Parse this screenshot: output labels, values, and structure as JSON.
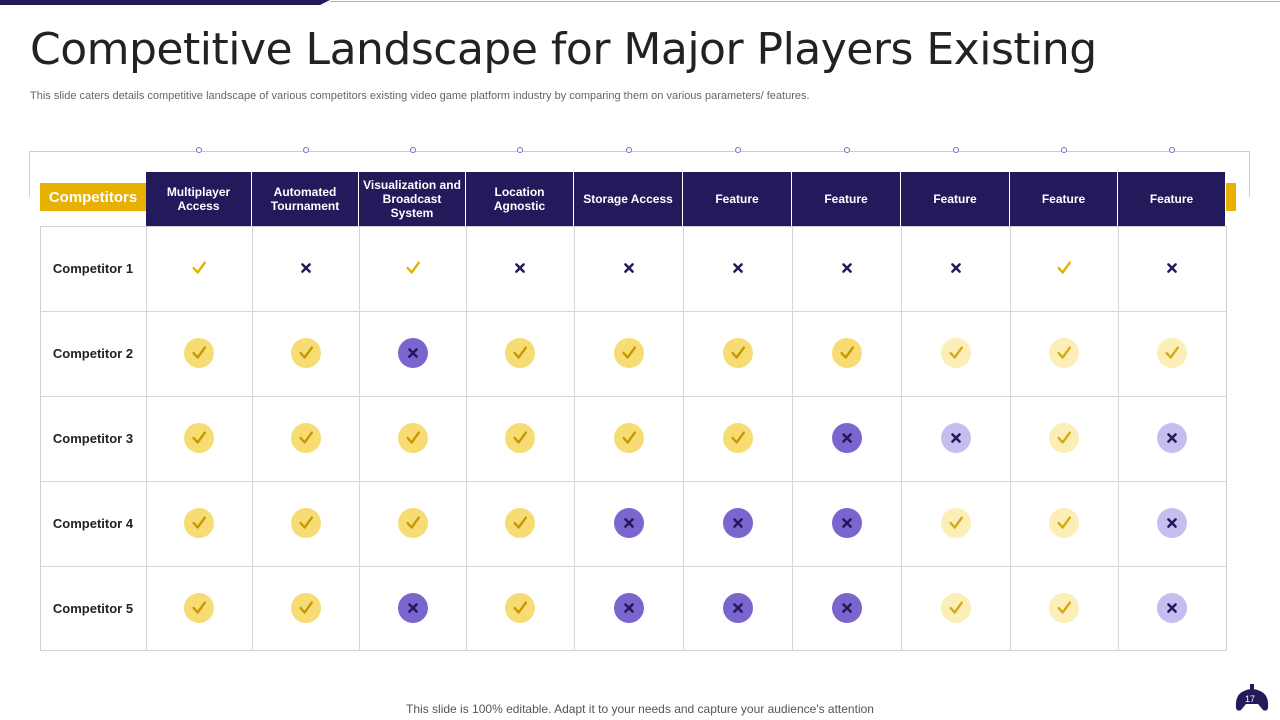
{
  "slide": {
    "title": "Competitive Landscape for Major Players Existing",
    "subtitle": "This slide caters details competitive landscape of various competitors existing video game platform industry by comparing them on various parameters/ features.",
    "footer": "This slide is 100% editable. Adapt it to your needs and capture your audience's attention",
    "page_number": "17"
  },
  "colors": {
    "navy": "#231a5c",
    "yellow": "#e8b000",
    "check_bg_strong": "#f7dc73",
    "check_bg_light": "#fbeeb7",
    "cross_bg_strong": "#7b66d0",
    "cross_bg_light": "#c7bdf0"
  },
  "table": {
    "corner_label": "Competitors",
    "columns": [
      "Multiplayer Access",
      "Automated Tournament",
      "Visualization and Broadcast System",
      "Location Agnostic",
      "Storage Access",
      "Feature",
      "Feature",
      "Feature",
      "Feature",
      "Feature"
    ],
    "rows": [
      {
        "label": "Competitor 1",
        "values": [
          "check-plain",
          "cross-plain",
          "check-plain",
          "cross-plain",
          "cross-plain",
          "cross-plain",
          "cross-plain",
          "cross-plain",
          "check-plain",
          "cross-plain"
        ]
      },
      {
        "label": "Competitor 2",
        "values": [
          "check",
          "check",
          "cross",
          "check",
          "check",
          "check",
          "check",
          "check-light",
          "check-light",
          "check-light"
        ]
      },
      {
        "label": "Competitor 3",
        "values": [
          "check",
          "check",
          "check",
          "check",
          "check",
          "check",
          "cross",
          "cross-light",
          "check-light",
          "cross-light"
        ]
      },
      {
        "label": "Competitor 4",
        "values": [
          "check",
          "check",
          "check",
          "check",
          "cross",
          "cross",
          "cross",
          "check-light",
          "check-light",
          "cross-light"
        ]
      },
      {
        "label": "Competitor 5",
        "values": [
          "check",
          "check",
          "cross",
          "check",
          "cross",
          "cross",
          "cross",
          "check-light",
          "check-light",
          "cross-light"
        ]
      }
    ]
  }
}
